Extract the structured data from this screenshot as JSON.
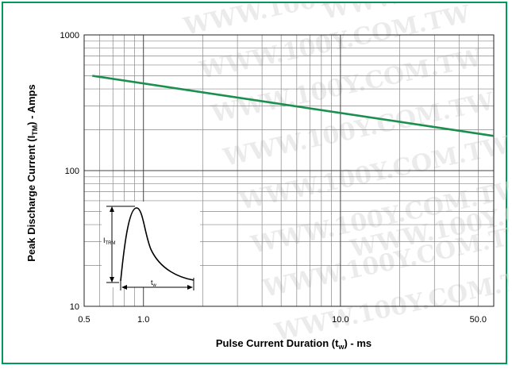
{
  "chart_data": {
    "type": "line",
    "x_scale": "log",
    "y_scale": "log",
    "xlim": [
      0.5,
      60
    ],
    "ylim": [
      10,
      1000
    ],
    "x_ticks": [
      {
        "value": 0.5,
        "label": "0.5"
      },
      {
        "value": 1,
        "label": "1.0"
      },
      {
        "value": 10,
        "label": "10.0"
      },
      {
        "value": 50,
        "label": "50.0"
      }
    ],
    "y_ticks": [
      {
        "value": 10,
        "label": "10"
      },
      {
        "value": 100,
        "label": "100"
      },
      {
        "value": 1000,
        "label": "1000"
      }
    ],
    "grid": true,
    "series": [
      {
        "color": "#1a8f4e",
        "x": [
          0.55,
          60
        ],
        "y": [
          500,
          180
        ]
      }
    ],
    "xlabel": {
      "main": "Pulse Current Duration (t",
      "sub": "w",
      "tail": ") - ms"
    },
    "ylabel": {
      "main": "Peak Discharge Current (I",
      "sub": "TM",
      "tail": ") - Amps"
    },
    "inset": {
      "height_label": {
        "main": "I",
        "sub": "TRM"
      },
      "width_label": {
        "main": "t",
        "sub": "w"
      }
    }
  },
  "watermark": "WWW.100Y.COM.TW"
}
